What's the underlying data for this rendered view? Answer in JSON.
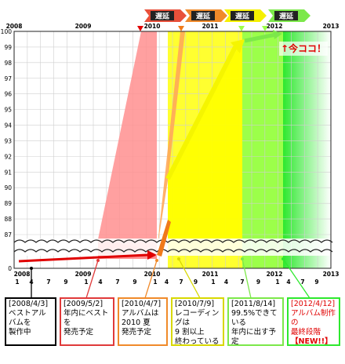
{
  "chart_data": {
    "type": "area",
    "title": "",
    "xlabel": "",
    "ylabel": "",
    "ylim": [
      87,
      100
    ],
    "y_ticks": [
      "100",
      "99",
      "98",
      "97",
      "96",
      "95",
      "94",
      "93",
      "92",
      "91",
      "90",
      "89",
      "88",
      "87"
    ],
    "y_zero_label": "0",
    "grid": true,
    "axis_break": true,
    "year_labels_top": [
      "2008",
      "2009",
      "2010",
      "2011",
      "2012",
      "2013"
    ],
    "year_labels_bottom": [
      "2008",
      "2009",
      "2010",
      "2011",
      "2012",
      "2013"
    ],
    "month_ticks": [
      "1",
      "4",
      "7",
      "9",
      "1",
      "4",
      "7",
      "9",
      "1",
      "4",
      "7",
      "9",
      "1",
      "4",
      "7",
      "9",
      "1",
      "4",
      "7",
      "9"
    ],
    "delay_label": "遅延",
    "delay_count": 4,
    "now_label": "↑今ココ！",
    "series": [
      {
        "date": "2008/4/3",
        "target": "ベストアルバム制作中",
        "due": "2008",
        "progress_pct": 0,
        "color": "#ff5a5a"
      },
      {
        "date": "2009/5/2",
        "target": "年内ベストアルバム発売",
        "due": "2009",
        "progress_pct": 0,
        "color": "#ff8f8f"
      },
      {
        "date": "2010/4/7",
        "target": "2010夏アルバム発売",
        "due": "2010 夏",
        "progress_pct": 0,
        "color": "#ffa85a"
      },
      {
        "date": "2010/7/9",
        "target": "レコーディング9割以上",
        "due": "2010/7",
        "progress_pct": 90,
        "color": "#ffff30"
      },
      {
        "date": "2011/8/14",
        "target": "年内アルバム発売",
        "due": "2011",
        "progress_pct": 99.5,
        "color": "#9cff4a"
      },
      {
        "date": "2012/4/12",
        "target": "アルバム制作最終段階",
        "due": "2012/4",
        "progress_pct": 100,
        "color": "#2ee82e"
      }
    ]
  },
  "captions": [
    {
      "date": "[2008/4/3]",
      "body": "ベストアルバムを\n製作中",
      "border": "#000000",
      "text_color": "#000000"
    },
    {
      "date": "[2009/5/2]",
      "body": "年内にベストを\n発売予定",
      "border": "#e03a3a",
      "text_color": "#000000"
    },
    {
      "date": "[2010/4/7]",
      "body": "アルバムは\n2010 夏\n発売予定",
      "border": "#f08a2a",
      "text_color": "#000000"
    },
    {
      "date": "[2010/7/9]",
      "body": "レコーディングは\n9 割以上\n終わっている",
      "border": "#d8d800",
      "text_color": "#000000"
    },
    {
      "date": "[2011/8/14]",
      "body": "99.5%できている\n年内に出す予定",
      "border": "#7ce84a",
      "text_color": "#000000"
    },
    {
      "date": "[2012/4/12]",
      "body": "アルバム制作の\n最終段階",
      "extra": "【NEW!!】",
      "border": "#2ee82e",
      "text_color": "#e00000"
    }
  ]
}
